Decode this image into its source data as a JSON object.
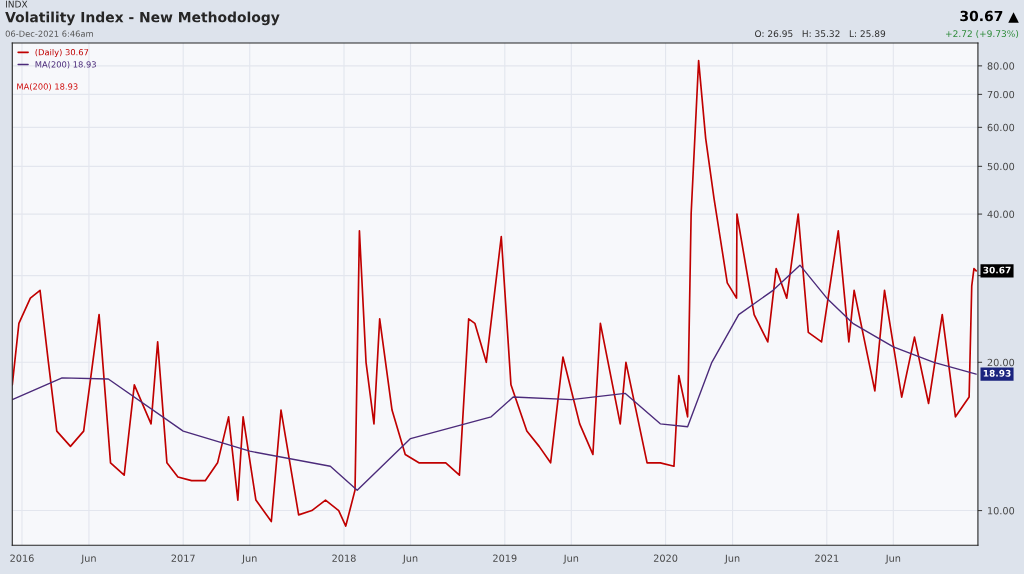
{
  "chart_data": {
    "type": "line",
    "title": "Volatility Index - New Methodology",
    "log": "y",
    "grid": true,
    "legend": "top left",
    "marker": "none",
    "line_style": "solid",
    "xlim": [
      "2015-12-10",
      "2021-12-10"
    ],
    "xticks": [
      {
        "value": "2016-01-01",
        "label": "2016"
      },
      {
        "value": "2016-06-01",
        "label": "Jun"
      },
      {
        "value": "2017-01-01",
        "label": "2017"
      },
      {
        "value": "2017-06-01",
        "label": "Jun"
      },
      {
        "value": "2018-01-01",
        "label": "2018"
      },
      {
        "value": "2018-06-01",
        "label": "Jun"
      },
      {
        "value": "2019-01-01",
        "label": "2019"
      },
      {
        "value": "2019-06-01",
        "label": "Jun"
      },
      {
        "value": "2020-01-01",
        "label": "2020"
      },
      {
        "value": "2020-06-01",
        "label": "Jun"
      },
      {
        "value": "2021-01-01",
        "label": "2021"
      },
      {
        "value": "2021-06-01",
        "label": "Jun"
      }
    ],
    "ylim": [
      8.5,
      89
    ],
    "yticks": [
      {
        "value": 10,
        "label": "10.00"
      },
      {
        "value": 20,
        "label": "20.00"
      },
      {
        "value": 30,
        "label": null
      },
      {
        "value": 40,
        "label": "40.00"
      },
      {
        "value": 50,
        "label": "50.00"
      },
      {
        "value": 60,
        "label": "60.00"
      },
      {
        "value": 70,
        "label": "70.00"
      },
      {
        "value": 80,
        "label": "80.00"
      }
    ],
    "series": [
      {
        "name": "(Daily) 30.67",
        "color": "#c00000",
        "x": [
          "2015-12-10",
          "2015-12-25",
          "2016-01-20",
          "2016-02-11",
          "2016-03-01",
          "2016-03-20",
          "2016-04-20",
          "2016-05-20",
          "2016-06-24",
          "2016-07-20",
          "2016-08-20",
          "2016-09-12",
          "2016-10-20",
          "2016-11-04",
          "2016-11-25",
          "2016-12-20",
          "2017-01-20",
          "2017-02-20",
          "2017-03-20",
          "2017-04-14",
          "2017-05-05",
          "2017-05-17",
          "2017-06-15",
          "2017-07-20",
          "2017-08-11",
          "2017-09-20",
          "2017-10-20",
          "2017-11-20",
          "2017-12-20",
          "2018-01-05",
          "2018-01-26",
          "2018-02-05",
          "2018-02-20",
          "2018-03-10",
          "2018-03-23",
          "2018-04-20",
          "2018-05-20",
          "2018-06-20",
          "2018-07-20",
          "2018-08-20",
          "2018-09-20",
          "2018-10-11",
          "2018-10-25",
          "2018-11-20",
          "2018-12-24",
          "2019-01-15",
          "2019-02-20",
          "2019-03-20",
          "2019-04-15",
          "2019-05-13",
          "2019-06-20",
          "2019-07-20",
          "2019-08-06",
          "2019-09-20",
          "2019-10-03",
          "2019-11-20",
          "2019-12-20",
          "2020-01-20",
          "2020-01-31",
          "2020-02-20",
          "2020-02-28",
          "2020-03-16",
          "2020-04-01",
          "2020-04-20",
          "2020-05-20",
          "2020-06-10",
          "2020-06-11",
          "2020-07-20",
          "2020-08-20",
          "2020-09-08",
          "2020-10-02",
          "2020-10-28",
          "2020-11-20",
          "2020-12-20",
          "2021-01-27",
          "2021-02-20",
          "2021-03-04",
          "2021-04-20",
          "2021-05-12",
          "2021-06-20",
          "2021-07-19",
          "2021-08-20",
          "2021-09-20",
          "2021-10-20",
          "2021-11-20",
          "2021-11-26",
          "2021-12-01",
          "2021-12-06"
        ],
        "values": [
          18,
          24,
          27,
          28,
          20,
          14.5,
          13.5,
          14.5,
          25,
          12.5,
          11.8,
          18,
          15,
          22,
          12.5,
          11.7,
          11.5,
          11.5,
          12.5,
          15.5,
          10.5,
          15.5,
          10.5,
          9.5,
          16,
          9.8,
          10,
          10.5,
          10,
          9.3,
          11,
          37,
          20,
          15,
          24.5,
          16,
          13,
          12.5,
          12.5,
          12.5,
          11.8,
          24.5,
          24,
          20,
          36,
          18,
          14.5,
          13.5,
          12.5,
          20.5,
          15,
          13,
          24,
          15,
          20,
          12.5,
          12.5,
          12.3,
          18.8,
          15.5,
          40,
          82,
          57,
          43,
          29,
          27,
          40,
          25,
          22,
          31,
          27,
          40,
          23,
          22,
          37,
          22,
          28,
          17.5,
          28,
          17,
          22.5,
          16.5,
          25,
          15.5,
          17,
          28.6,
          31,
          30.67
        ]
      },
      {
        "name": "MA(200) 18.93",
        "color": "#4b2a7a",
        "x": [
          "2015-12-10",
          "2016-04-01",
          "2016-07-15",
          "2017-01-01",
          "2017-06-01",
          "2017-12-01",
          "2018-01-31",
          "2018-06-01",
          "2018-12-01",
          "2019-01-20",
          "2019-06-01",
          "2019-10-01",
          "2019-12-20",
          "2020-02-20",
          "2020-04-15",
          "2020-06-15",
          "2020-09-01",
          "2020-11-01",
          "2021-01-01",
          "2021-03-01",
          "2021-06-01",
          "2021-09-01",
          "2021-12-06"
        ],
        "values": [
          16.8,
          18.6,
          18.5,
          14.5,
          13.2,
          12.3,
          11,
          14,
          15.5,
          17,
          16.8,
          17.3,
          15,
          14.8,
          20,
          25,
          28,
          31.5,
          27,
          24,
          21.5,
          20,
          18.93
        ]
      }
    ],
    "annotations": [
      "INDX",
      "06-Dec-2021 6:46am",
      "O: 26.95   H: 35.32   L: 25.89",
      "+2.72 (+9.73%)",
      "30.67 ▲",
      "MA(200) 18.93",
      {
        "text": "30.67",
        "x": "2021-12-06",
        "y": 30.67
      },
      {
        "text": "18.93",
        "x": "2021-12-06",
        "y": 18.93
      }
    ]
  }
}
